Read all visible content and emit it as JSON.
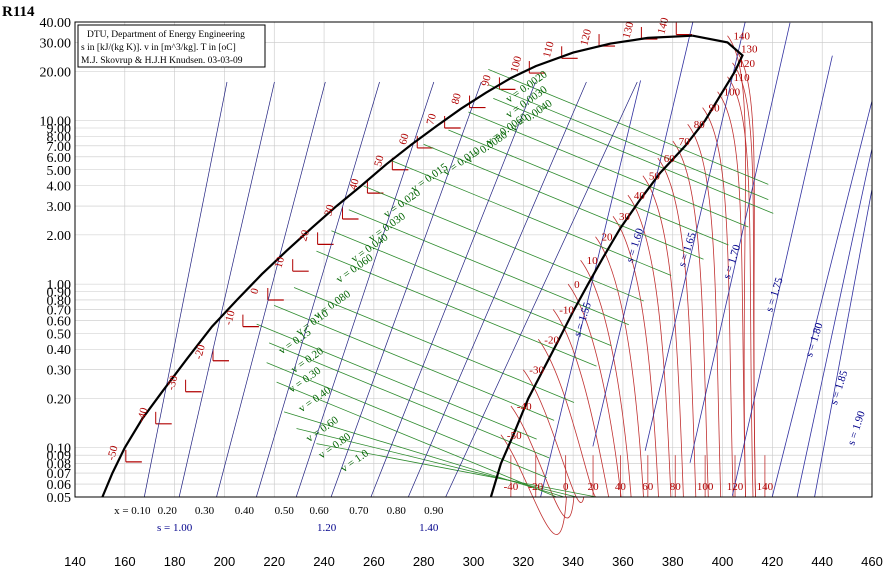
{
  "chart_data": {
    "type": "line",
    "title": "R114",
    "info_lines": [
      "DTU, Department of Energy Engineering",
      "s in [kJ/(kg K)]. v in [m^3/kg]. T in [oC]",
      "M.J. Skovrup & H.J.H Knudsen. 03-03-09"
    ],
    "x_axis": {
      "range": [
        140,
        460
      ],
      "ticks": [
        140,
        160,
        180,
        200,
        220,
        240,
        260,
        280,
        300,
        320,
        340,
        360,
        380,
        400,
        420,
        440,
        460
      ]
    },
    "y_axis": {
      "scale": "log",
      "range": [
        0.05,
        40
      ],
      "tick_values": [
        0.05,
        0.06,
        0.07,
        0.08,
        0.09,
        0.1,
        0.2,
        0.3,
        0.4,
        0.5,
        0.6,
        0.7,
        0.8,
        0.9,
        1,
        2,
        3,
        4,
        5,
        6,
        7,
        8,
        9,
        10,
        20,
        30,
        40
      ],
      "tick_labels": [
        "0.05",
        "0.06",
        "0.07",
        "0.08",
        "0.09",
        "0.10",
        "0.20",
        "0.30",
        "0.40",
        "0.50",
        "0.60",
        "0.70",
        "0.80",
        "0.90",
        "1.00",
        "2.00",
        "3.00",
        "4.00",
        "5.00",
        "6.00",
        "7.00",
        "8.00",
        "9.00",
        "10.00",
        "20.00",
        "30.00",
        "40.00"
      ]
    },
    "saturation": {
      "critical_point": [
        388,
        33
      ],
      "liquid_line": [
        [
          151,
          0.05
        ],
        [
          155,
          0.07
        ],
        [
          160,
          0.1
        ],
        [
          167,
          0.15
        ],
        [
          175,
          0.22
        ],
        [
          185,
          0.35
        ],
        [
          195,
          0.55
        ],
        [
          205,
          0.8
        ],
        [
          215,
          1.15
        ],
        [
          225,
          1.6
        ],
        [
          235,
          2.2
        ],
        [
          245,
          3.0
        ],
        [
          255,
          4.0
        ],
        [
          265,
          5.4
        ],
        [
          275,
          7.1
        ],
        [
          285,
          9.2
        ],
        [
          295,
          11.8
        ],
        [
          305,
          14.8
        ],
        [
          315,
          18.2
        ],
        [
          325,
          21.5
        ],
        [
          340,
          26.0
        ],
        [
          355,
          29.5
        ],
        [
          370,
          32.0
        ],
        [
          388,
          33
        ]
      ],
      "vapor_line": [
        [
          388,
          33
        ],
        [
          402,
          30.0
        ],
        [
          408,
          25.0
        ],
        [
          405,
          20.0
        ],
        [
          400,
          15.0
        ],
        [
          393,
          10.0
        ],
        [
          385,
          7.0
        ],
        [
          375,
          4.8
        ],
        [
          367,
          3.3
        ],
        [
          359,
          2.2
        ],
        [
          352,
          1.45
        ],
        [
          346,
          1.0
        ],
        [
          340,
          0.68
        ],
        [
          334,
          0.45
        ],
        [
          328,
          0.3
        ],
        [
          322,
          0.2
        ],
        [
          316,
          0.12
        ],
        [
          311,
          0.08
        ],
        [
          307,
          0.05
        ]
      ]
    },
    "temperature_labels_liquid": [
      {
        "label": "-50",
        "x": 158,
        "y": 0.082
      },
      {
        "label": "-40",
        "x": 170,
        "y": 0.14
      },
      {
        "label": "-30",
        "x": 182,
        "y": 0.22
      },
      {
        "label": "-20",
        "x": 193,
        "y": 0.34
      },
      {
        "label": "-10",
        "x": 205,
        "y": 0.55
      },
      {
        "label": "0",
        "x": 215,
        "y": 0.8
      },
      {
        "label": "10",
        "x": 225,
        "y": 1.2
      },
      {
        "label": "20",
        "x": 235,
        "y": 1.75
      },
      {
        "label": "30",
        "x": 245,
        "y": 2.5
      },
      {
        "label": "40",
        "x": 255,
        "y": 3.6
      },
      {
        "label": "50",
        "x": 265,
        "y": 5.0
      },
      {
        "label": "60",
        "x": 275,
        "y": 6.8
      },
      {
        "label": "70",
        "x": 286,
        "y": 9.0
      },
      {
        "label": "80",
        "x": 296,
        "y": 12.0
      },
      {
        "label": "90",
        "x": 308,
        "y": 15.5
      },
      {
        "label": "100",
        "x": 320,
        "y": 19.5
      },
      {
        "label": "110",
        "x": 333,
        "y": 24.0
      },
      {
        "label": "120",
        "x": 348,
        "y": 28.5
      },
      {
        "label": "130",
        "x": 365,
        "y": 31.5
      },
      {
        "label": "140",
        "x": 379,
        "y": 33.5
      }
    ],
    "temperature_labels_vapor": [
      {
        "label": "140",
        "x": 402,
        "y": 33.0
      },
      {
        "label": "130",
        "x": 405,
        "y": 27.5
      },
      {
        "label": "120",
        "x": 404,
        "y": 22.5
      },
      {
        "label": "110",
        "x": 402,
        "y": 18.5
      },
      {
        "label": "100",
        "x": 398,
        "y": 15.0
      },
      {
        "label": "90",
        "x": 392,
        "y": 12.0
      },
      {
        "label": "80",
        "x": 386,
        "y": 9.5
      },
      {
        "label": "70",
        "x": 380,
        "y": 7.5
      },
      {
        "label": "60",
        "x": 374,
        "y": 5.9
      },
      {
        "label": "50",
        "x": 368,
        "y": 4.6
      },
      {
        "label": "40",
        "x": 362,
        "y": 3.5
      },
      {
        "label": "30",
        "x": 356,
        "y": 2.6
      },
      {
        "label": "20",
        "x": 349,
        "y": 1.95
      },
      {
        "label": "10",
        "x": 343,
        "y": 1.4
      },
      {
        "label": "0",
        "x": 338,
        "y": 1.0
      },
      {
        "label": "-10",
        "x": 332,
        "y": 0.7
      },
      {
        "label": "-20",
        "x": 326,
        "y": 0.46
      },
      {
        "label": "-30",
        "x": 320,
        "y": 0.3
      },
      {
        "label": "-40",
        "x": 315,
        "y": 0.18
      },
      {
        "label": "-50",
        "x": 311,
        "y": 0.12
      }
    ],
    "temperature_labels_bottom": [
      {
        "label": "-40",
        "x": 315,
        "y": 0.055
      },
      {
        "label": "-20",
        "x": 325,
        "y": 0.055
      },
      {
        "label": "0",
        "x": 337,
        "y": 0.055
      },
      {
        "label": "20",
        "x": 348,
        "y": 0.055
      },
      {
        "label": "40",
        "x": 359,
        "y": 0.055
      },
      {
        "label": "60",
        "x": 370,
        "y": 0.055
      },
      {
        "label": "80",
        "x": 381,
        "y": 0.055
      },
      {
        "label": "100",
        "x": 393,
        "y": 0.055
      },
      {
        "label": "120",
        "x": 405,
        "y": 0.055
      },
      {
        "label": "140",
        "x": 417,
        "y": 0.055
      }
    ],
    "quality_labels": {
      "y": 0.05,
      "items": [
        {
          "label": "x = 0.10",
          "x": 163
        },
        {
          "label": "0.20",
          "x": 177
        },
        {
          "label": "0.30",
          "x": 192
        },
        {
          "label": "0.40",
          "x": 208
        },
        {
          "label": "0.50",
          "x": 224
        },
        {
          "label": "0.60",
          "x": 238
        },
        {
          "label": "0.70",
          "x": 254
        },
        {
          "label": "0.80",
          "x": 269
        },
        {
          "label": "0.90",
          "x": 284
        }
      ]
    },
    "entropy_bottom_labels": [
      {
        "label": "s = 1.00",
        "x": 180
      },
      {
        "label": "1.20",
        "x": 241
      },
      {
        "label": "1.40",
        "x": 282
      }
    ],
    "entropy_labels": [
      {
        "label": "s = 1.55",
        "x": 345,
        "y": 0.6
      },
      {
        "label": "s = 1.60",
        "x": 366,
        "y": 1.7
      },
      {
        "label": "s = 1.65",
        "x": 387,
        "y": 1.6
      },
      {
        "label": "s = 1.70",
        "x": 405,
        "y": 1.35
      },
      {
        "label": "s = 1.75",
        "x": 422,
        "y": 0.85
      },
      {
        "label": "s = 1.80",
        "x": 438,
        "y": 0.45
      },
      {
        "label": "s = 1.85",
        "x": 448,
        "y": 0.23
      },
      {
        "label": "s = 1.90",
        "x": 455,
        "y": 0.13
      }
    ],
    "volume_labels": [
      {
        "label": "v = 0.0020",
        "x": 322,
        "y": 15.5
      },
      {
        "label": "v = 0.0030",
        "x": 322,
        "y": 12.5
      },
      {
        "label": "v = 0.0040",
        "x": 324,
        "y": 10.3
      },
      {
        "label": "v = 0.0060",
        "x": 314,
        "y": 8.5
      },
      {
        "label": "v = 0.0080",
        "x": 306,
        "y": 6.6
      },
      {
        "label": "v = 0.010",
        "x": 296,
        "y": 5.4
      },
      {
        "label": "v = 0.015",
        "x": 283,
        "y": 4.3
      },
      {
        "label": "v = 0.020",
        "x": 272,
        "y": 3.0
      },
      {
        "label": "v = 0.030",
        "x": 266,
        "y": 2.15
      },
      {
        "label": "v = 0.040",
        "x": 259,
        "y": 1.6
      },
      {
        "label": "v = 0.060",
        "x": 253,
        "y": 1.2
      },
      {
        "label": "v = 0.080",
        "x": 244,
        "y": 0.72
      },
      {
        "label": "v = 0.10",
        "x": 236,
        "y": 0.56
      },
      {
        "label": "v = 0.15",
        "x": 229,
        "y": 0.43
      },
      {
        "label": "v = 0.20",
        "x": 234,
        "y": 0.33
      },
      {
        "label": "v = 0.30",
        "x": 233,
        "y": 0.25
      },
      {
        "label": "v = 0.40",
        "x": 237,
        "y": 0.19
      },
      {
        "label": "v = 0.60",
        "x": 240,
        "y": 0.125
      },
      {
        "label": "v = 0.80",
        "x": 245,
        "y": 0.099
      },
      {
        "label": "v = 1.0",
        "x": 253,
        "y": 0.08
      }
    ]
  }
}
